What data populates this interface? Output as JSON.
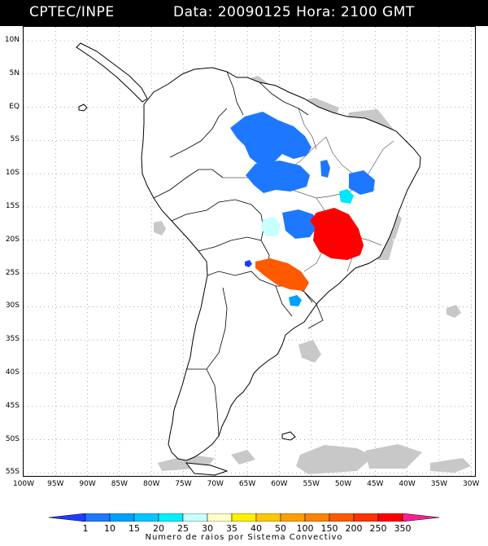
{
  "header": {
    "source": "CPTEC/INPE",
    "datetime": "Data: 20090125 Hora: 2100 GMT"
  },
  "map": {
    "lat_labels": [
      "10N",
      "5N",
      "EQ",
      "5S",
      "10S",
      "15S",
      "20S",
      "25S",
      "30S",
      "35S",
      "40S",
      "45S",
      "50S",
      "55S"
    ],
    "lon_labels": [
      "100W",
      "95W",
      "90W",
      "85W",
      "80W",
      "75W",
      "70W",
      "65W",
      "60W",
      "55W",
      "50W",
      "45W",
      "40W",
      "35W",
      "30W"
    ],
    "extent": {
      "lon_min": -100,
      "lon_max": -27,
      "lat_min": -56,
      "lat_max": 12
    },
    "land_color": "#ffffff",
    "cloud_color": "#c8c8c8",
    "storm_clusters": [
      {
        "region": "Amazonas-Para",
        "category": "10",
        "color": "#1e78ff"
      },
      {
        "region": "Rondonia-Mato Grosso",
        "category": "10",
        "color": "#1e78ff"
      },
      {
        "region": "Mato Grosso do Sul",
        "category": "10",
        "color": "#1e78ff"
      },
      {
        "region": "Bahia",
        "category": "10",
        "color": "#1e78ff"
      },
      {
        "region": "Bahia-east",
        "category": "20",
        "color": "#00e6ff"
      },
      {
        "region": "Bolivia-Paraguay border",
        "category": "25",
        "color": "#c8ffff"
      },
      {
        "region": "Minas Gerais / Sao Paulo",
        "category": "350",
        "color": "#ff0000"
      },
      {
        "region": "Paraguay / Northern Argentina",
        "category": "200",
        "color": "#ff5a00"
      },
      {
        "region": "Rio Grande do Sul",
        "category": "15",
        "color": "#00a0ff"
      }
    ]
  },
  "colorbar": {
    "ticks": [
      "1",
      "10",
      "15",
      "20",
      "25",
      "30",
      "35",
      "40",
      "50",
      "100",
      "150",
      "200",
      "250",
      "350"
    ],
    "colors": [
      "#1e3cff",
      "#1e78ff",
      "#00a0ff",
      "#00c8ff",
      "#00f0ff",
      "#c8ffff",
      "#ffffc8",
      "#fff000",
      "#ffc800",
      "#ffa000",
      "#ff8200",
      "#ff5a00",
      "#ff3200",
      "#ff0000",
      "#ff1e96"
    ],
    "title": "Numero de raios por Sistema Convectivo"
  }
}
